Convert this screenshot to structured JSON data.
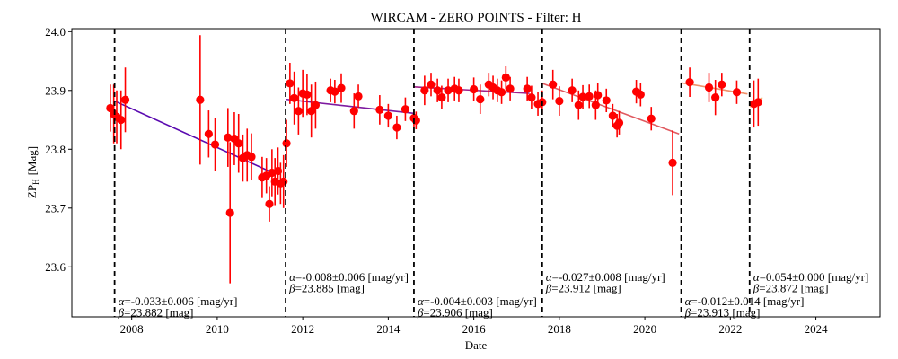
{
  "chart_data": {
    "type": "scatter",
    "title": "WIRCAM - ZERO POINTS - Filter: H",
    "xlabel": "Date",
    "ylabel_main": "ZP",
    "ylabel_sub": "H",
    "ylabel_unit": "[Mag]",
    "xlim": [
      2006.6,
      2025.5
    ],
    "ylim": [
      23.515,
      24.005
    ],
    "x_ticks": [
      2008,
      2010,
      2012,
      2014,
      2016,
      2018,
      2020,
      2022,
      2024
    ],
    "y_ticks": [
      23.6,
      23.7,
      23.8,
      23.9,
      24.0
    ],
    "y_tick_labels": [
      "23.6",
      "23.7",
      "23.8",
      "23.9",
      "24.0"
    ],
    "grid": false,
    "marker_color": "#ff0000",
    "breakpoints": [
      2007.6,
      2011.6,
      2014.6,
      2017.6,
      2020.85,
      2022.45
    ],
    "segments": [
      {
        "x0": 2007.6,
        "x1": 2011.3,
        "y0": 23.882,
        "y1": 23.76,
        "color": "#5a0ab0",
        "alpha_text": "-0.033±0.006 [mag/yr]",
        "beta_text": "23.882 [mag]",
        "alpha_y": 23.535,
        "beta_y": 23.516
      },
      {
        "x0": 2011.6,
        "x1": 2014.6,
        "y0": 23.885,
        "y1": 23.861,
        "color": "#7d1aa0",
        "alpha_text": "-0.008±0.006 [mag/yr]",
        "beta_text": "23.885 [mag]",
        "alpha_y": 23.576,
        "beta_y": 23.557
      },
      {
        "x0": 2014.6,
        "x1": 2017.3,
        "y0": 23.906,
        "y1": 23.895,
        "color": "#a0208a",
        "alpha_text": "-0.004±0.003 [mag/yr]",
        "beta_text": "23.906 [mag]",
        "alpha_y": 23.535,
        "beta_y": 23.516
      },
      {
        "x0": 2017.6,
        "x1": 2020.8,
        "y0": 23.912,
        "y1": 23.826,
        "color": "#e05a60",
        "alpha_text": "-0.027±0.008 [mag/yr]",
        "beta_text": "23.912 [mag]",
        "alpha_y": 23.576,
        "beta_y": 23.557
      },
      {
        "x0": 2020.85,
        "x1": 2022.4,
        "y0": 23.913,
        "y1": 23.894,
        "color": "#f0906a",
        "alpha_text": "-0.012±0.014 [mag/yr]",
        "beta_text": "23.913 [mag]",
        "alpha_y": 23.535,
        "beta_y": 23.516
      },
      {
        "x0": 2022.45,
        "x1": 2022.75,
        "y0": 23.872,
        "y1": 23.888,
        "color": "#f5b070",
        "alpha_text": "0.054±0.000 [mag/yr]",
        "beta_text": "23.872 [mag]",
        "alpha_y": 23.576,
        "beta_y": 23.557
      }
    ],
    "points": [
      {
        "x": 2007.5,
        "y": 23.87,
        "err": 0.04
      },
      {
        "x": 2007.58,
        "y": 23.86,
        "err": 0.05
      },
      {
        "x": 2007.65,
        "y": 23.855,
        "err": 0.045
      },
      {
        "x": 2007.75,
        "y": 23.85,
        "err": 0.05
      },
      {
        "x": 2007.85,
        "y": 23.884,
        "err": 0.055
      },
      {
        "x": 2009.6,
        "y": 23.884,
        "err": 0.11
      },
      {
        "x": 2009.8,
        "y": 23.826,
        "err": 0.04
      },
      {
        "x": 2009.95,
        "y": 23.808,
        "err": 0.045
      },
      {
        "x": 2010.25,
        "y": 23.82,
        "err": 0.05
      },
      {
        "x": 2010.3,
        "y": 23.692,
        "err": 0.12
      },
      {
        "x": 2010.4,
        "y": 23.818,
        "err": 0.045
      },
      {
        "x": 2010.5,
        "y": 23.81,
        "err": 0.05
      },
      {
        "x": 2010.6,
        "y": 23.785,
        "err": 0.04
      },
      {
        "x": 2010.7,
        "y": 23.79,
        "err": 0.045
      },
      {
        "x": 2010.8,
        "y": 23.787,
        "err": 0.04
      },
      {
        "x": 2011.05,
        "y": 23.752,
        "err": 0.035
      },
      {
        "x": 2011.15,
        "y": 23.755,
        "err": 0.03
      },
      {
        "x": 2011.22,
        "y": 23.707,
        "err": 0.03
      },
      {
        "x": 2011.28,
        "y": 23.76,
        "err": 0.04
      },
      {
        "x": 2011.35,
        "y": 23.745,
        "err": 0.04
      },
      {
        "x": 2011.42,
        "y": 23.763,
        "err": 0.04
      },
      {
        "x": 2011.48,
        "y": 23.742,
        "err": 0.035
      },
      {
        "x": 2011.55,
        "y": 23.745,
        "err": 0.045
      },
      {
        "x": 2011.62,
        "y": 23.81,
        "err": 0.04
      },
      {
        "x": 2011.7,
        "y": 23.912,
        "err": 0.035
      },
      {
        "x": 2011.8,
        "y": 23.887,
        "err": 0.045
      },
      {
        "x": 2011.9,
        "y": 23.865,
        "err": 0.04
      },
      {
        "x": 2012.0,
        "y": 23.895,
        "err": 0.04
      },
      {
        "x": 2012.1,
        "y": 23.893,
        "err": 0.035
      },
      {
        "x": 2012.2,
        "y": 23.865,
        "err": 0.045
      },
      {
        "x": 2012.3,
        "y": 23.875,
        "err": 0.04
      },
      {
        "x": 2012.65,
        "y": 23.9,
        "err": 0.02
      },
      {
        "x": 2012.75,
        "y": 23.898,
        "err": 0.02
      },
      {
        "x": 2012.9,
        "y": 23.904,
        "err": 0.025
      },
      {
        "x": 2013.2,
        "y": 23.865,
        "err": 0.03
      },
      {
        "x": 2013.3,
        "y": 23.89,
        "err": 0.02
      },
      {
        "x": 2013.8,
        "y": 23.867,
        "err": 0.025
      },
      {
        "x": 2014.0,
        "y": 23.857,
        "err": 0.02
      },
      {
        "x": 2014.2,
        "y": 23.837,
        "err": 0.02
      },
      {
        "x": 2014.4,
        "y": 23.868,
        "err": 0.02
      },
      {
        "x": 2014.6,
        "y": 23.853,
        "err": 0.015
      },
      {
        "x": 2014.65,
        "y": 23.849,
        "err": 0.015
      },
      {
        "x": 2014.85,
        "y": 23.9,
        "err": 0.025
      },
      {
        "x": 2015.0,
        "y": 23.91,
        "err": 0.02
      },
      {
        "x": 2015.15,
        "y": 23.9,
        "err": 0.02
      },
      {
        "x": 2015.25,
        "y": 23.888,
        "err": 0.02
      },
      {
        "x": 2015.4,
        "y": 23.9,
        "err": 0.02
      },
      {
        "x": 2015.55,
        "y": 23.903,
        "err": 0.02
      },
      {
        "x": 2015.65,
        "y": 23.9,
        "err": 0.02
      },
      {
        "x": 2016.0,
        "y": 23.902,
        "err": 0.02
      },
      {
        "x": 2016.15,
        "y": 23.885,
        "err": 0.025
      },
      {
        "x": 2016.35,
        "y": 23.91,
        "err": 0.02
      },
      {
        "x": 2016.45,
        "y": 23.905,
        "err": 0.02
      },
      {
        "x": 2016.55,
        "y": 23.9,
        "err": 0.02
      },
      {
        "x": 2016.65,
        "y": 23.897,
        "err": 0.02
      },
      {
        "x": 2016.75,
        "y": 23.922,
        "err": 0.02
      },
      {
        "x": 2016.85,
        "y": 23.903,
        "err": 0.02
      },
      {
        "x": 2017.25,
        "y": 23.903,
        "err": 0.02
      },
      {
        "x": 2017.35,
        "y": 23.888,
        "err": 0.02
      },
      {
        "x": 2017.5,
        "y": 23.877,
        "err": 0.02
      },
      {
        "x": 2017.6,
        "y": 23.88,
        "err": 0.02
      },
      {
        "x": 2017.85,
        "y": 23.91,
        "err": 0.025
      },
      {
        "x": 2018.0,
        "y": 23.882,
        "err": 0.025
      },
      {
        "x": 2018.3,
        "y": 23.9,
        "err": 0.02
      },
      {
        "x": 2018.45,
        "y": 23.875,
        "err": 0.025
      },
      {
        "x": 2018.55,
        "y": 23.889,
        "err": 0.02
      },
      {
        "x": 2018.7,
        "y": 23.89,
        "err": 0.02
      },
      {
        "x": 2018.85,
        "y": 23.875,
        "err": 0.025
      },
      {
        "x": 2018.9,
        "y": 23.892,
        "err": 0.02
      },
      {
        "x": 2019.1,
        "y": 23.883,
        "err": 0.02
      },
      {
        "x": 2019.25,
        "y": 23.857,
        "err": 0.02
      },
      {
        "x": 2019.35,
        "y": 23.84,
        "err": 0.02
      },
      {
        "x": 2019.4,
        "y": 23.845,
        "err": 0.02
      },
      {
        "x": 2019.8,
        "y": 23.898,
        "err": 0.02
      },
      {
        "x": 2019.9,
        "y": 23.893,
        "err": 0.02
      },
      {
        "x": 2020.15,
        "y": 23.852,
        "err": 0.02
      },
      {
        "x": 2020.65,
        "y": 23.777,
        "err": 0.055
      },
      {
        "x": 2021.05,
        "y": 23.914,
        "err": 0.025
      },
      {
        "x": 2021.5,
        "y": 23.905,
        "err": 0.025
      },
      {
        "x": 2021.65,
        "y": 23.888,
        "err": 0.03
      },
      {
        "x": 2021.8,
        "y": 23.91,
        "err": 0.02
      },
      {
        "x": 2022.15,
        "y": 23.897,
        "err": 0.02
      },
      {
        "x": 2022.55,
        "y": 23.877,
        "err": 0.04
      },
      {
        "x": 2022.65,
        "y": 23.88,
        "err": 0.04
      }
    ]
  }
}
